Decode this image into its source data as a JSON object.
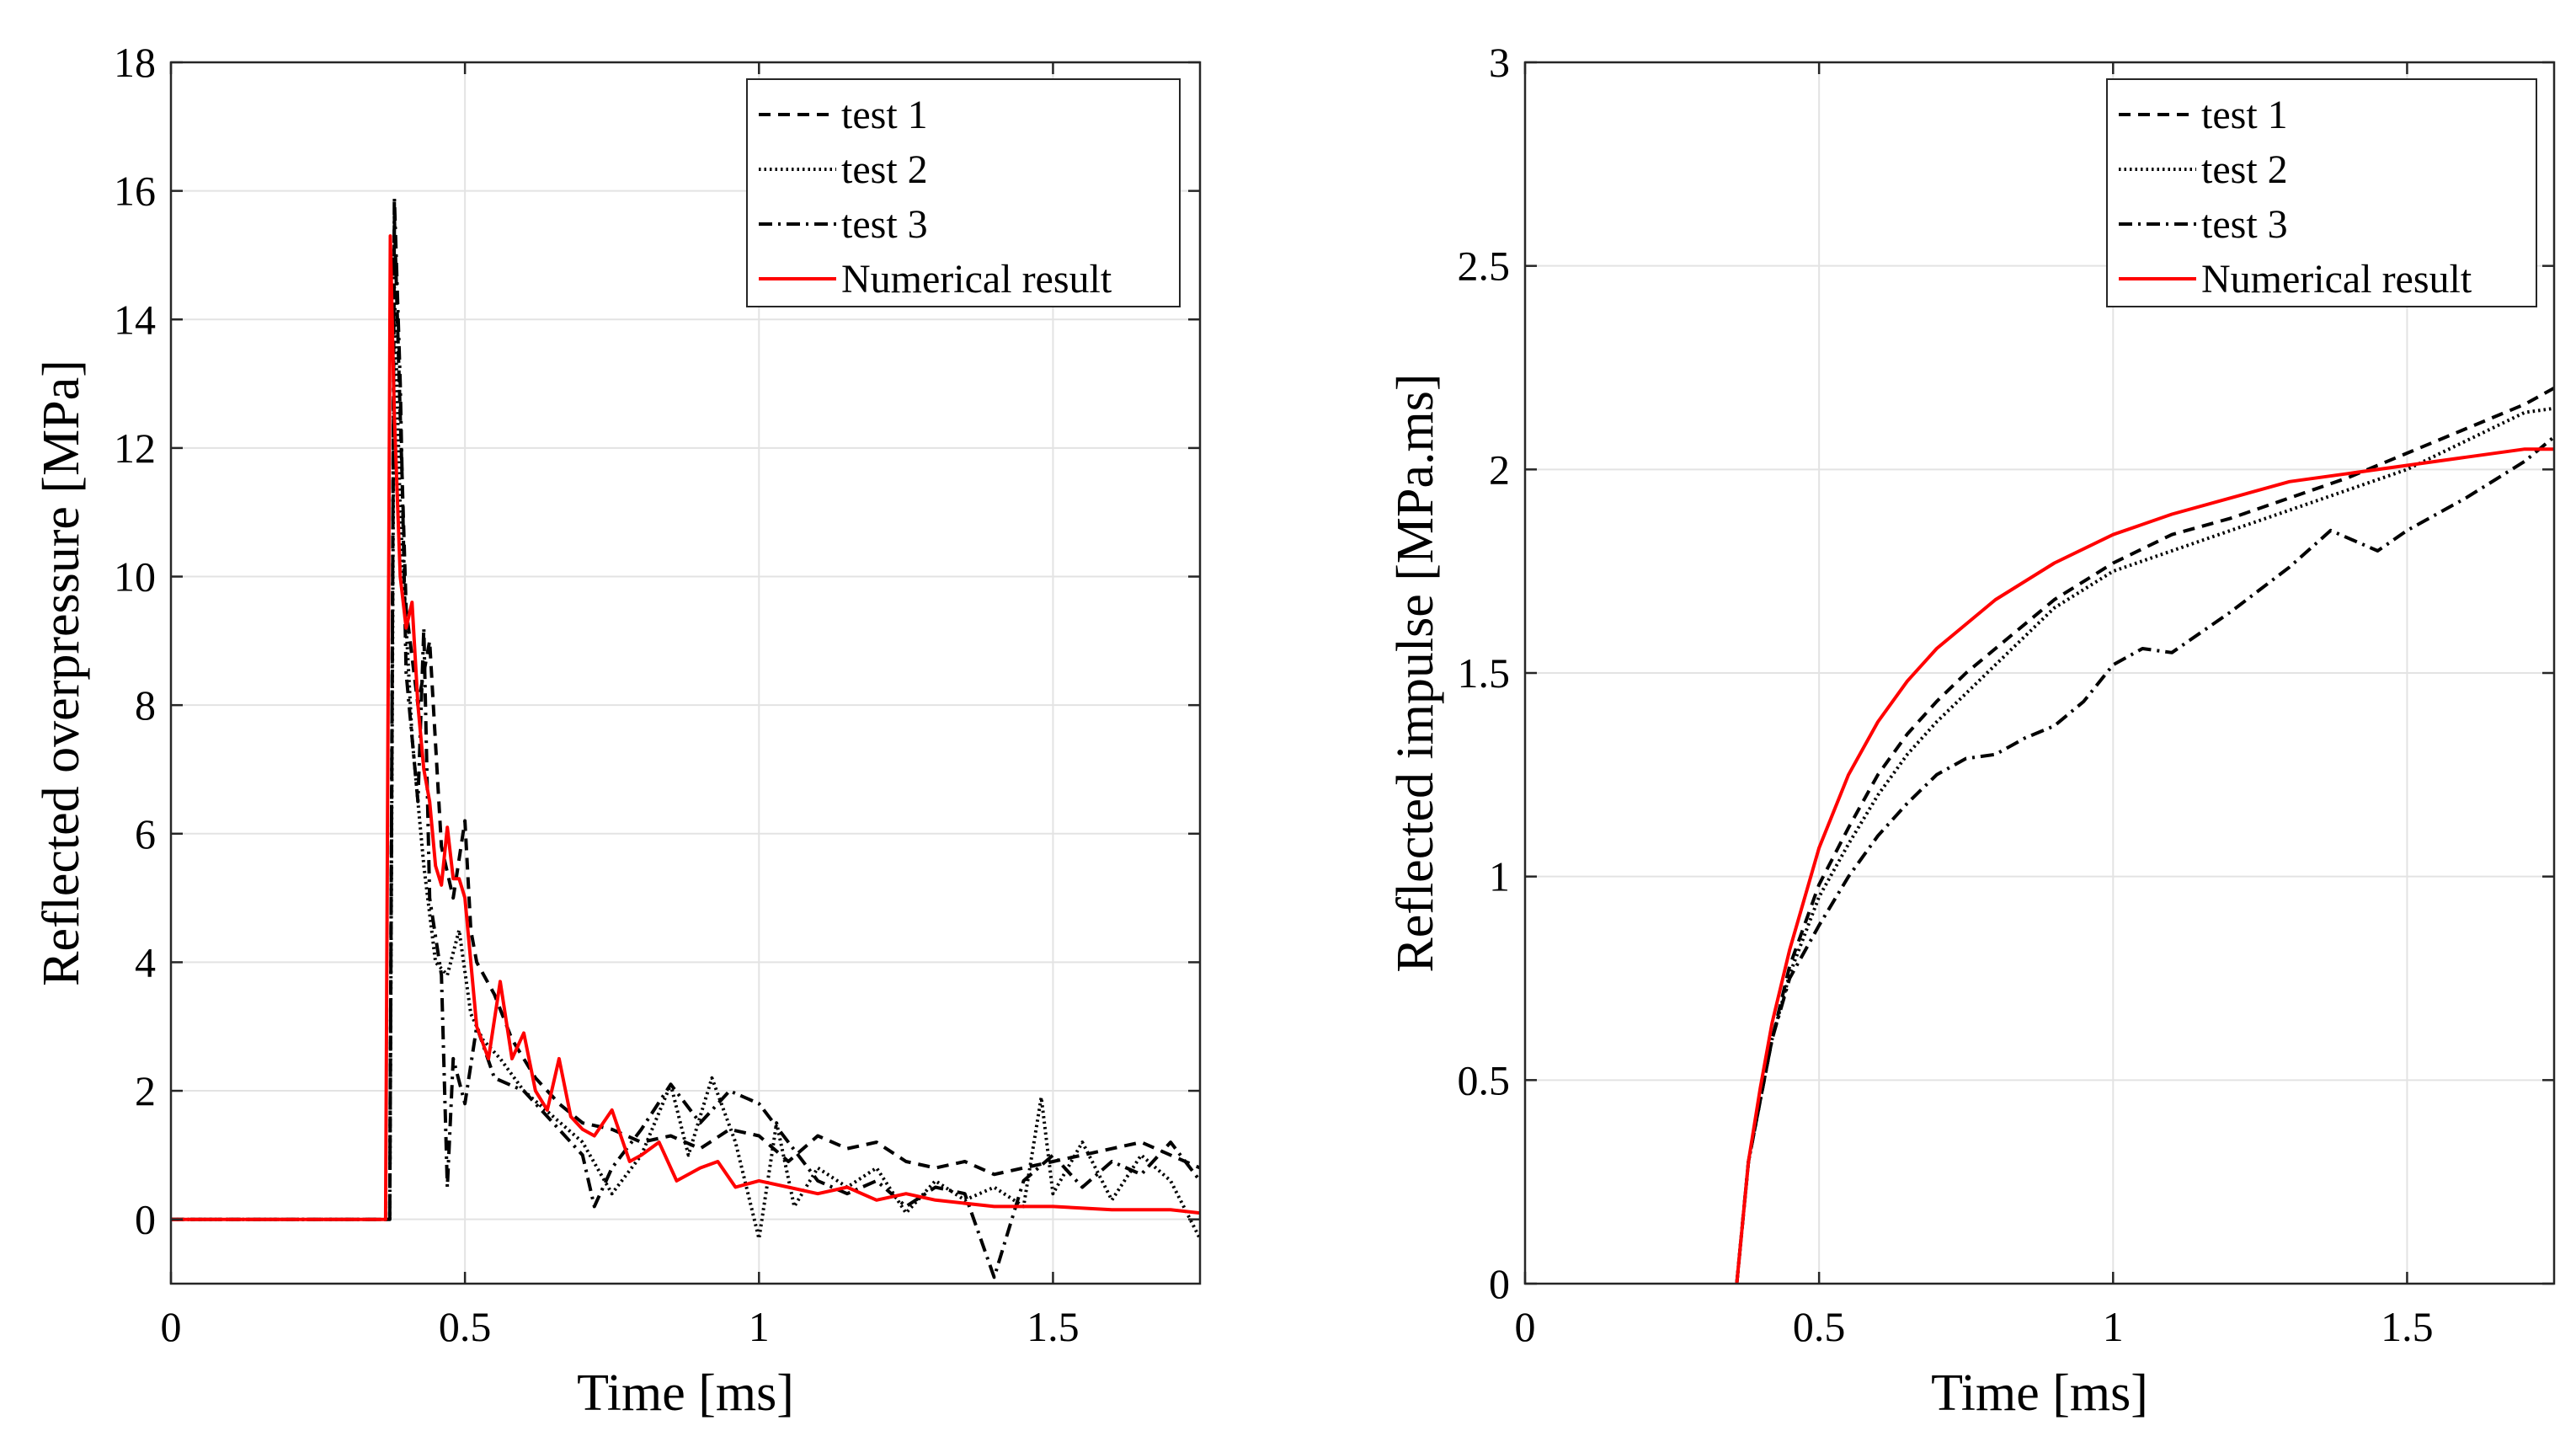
{
  "chart_data": [
    {
      "type": "line",
      "xlabel": "Time [ms]",
      "ylabel": "Reflected overpressure [MPa]",
      "xlim": [
        0,
        1.75
      ],
      "ylim": [
        -1,
        18
      ],
      "xticks": [
        0,
        0.5,
        1,
        1.5
      ],
      "xtick_labels": [
        "0",
        "0.5",
        "1",
        "1.5"
      ],
      "yticks": [
        0,
        2,
        4,
        6,
        8,
        10,
        12,
        14,
        16,
        18
      ],
      "ytick_labels": [
        "0",
        "2",
        "4",
        "6",
        "8",
        "10",
        "12",
        "14",
        "16",
        "18"
      ],
      "grid": true,
      "legend_position": "top-right",
      "series": [
        {
          "name": "test 1",
          "style": "dashed",
          "color": "#000000",
          "x": [
            0,
            0.36,
            0.372,
            0.38,
            0.39,
            0.4,
            0.42,
            0.44,
            0.46,
            0.48,
            0.5,
            0.51,
            0.52,
            0.55,
            0.58,
            0.62,
            0.66,
            0.7,
            0.75,
            0.8,
            0.85,
            0.9,
            0.95,
            1.0,
            1.05,
            1.1,
            1.15,
            1.2,
            1.25,
            1.3,
            1.35,
            1.4,
            1.45,
            1.5,
            1.55,
            1.6,
            1.65,
            1.7,
            1.75
          ],
          "y": [
            0,
            0,
            0,
            15.6,
            12.5,
            9.5,
            8.0,
            9.0,
            5.8,
            5.0,
            6.2,
            4.5,
            4.0,
            3.5,
            2.8,
            2.2,
            1.8,
            1.5,
            1.4,
            1.2,
            1.3,
            1.1,
            1.4,
            1.3,
            0.9,
            1.3,
            1.1,
            1.2,
            0.9,
            0.8,
            0.9,
            0.7,
            0.8,
            0.9,
            1.0,
            1.1,
            1.2,
            1.0,
            0.8
          ]
        },
        {
          "name": "test 2",
          "style": "dotted",
          "color": "#000000",
          "x": [
            0,
            0.36,
            0.372,
            0.38,
            0.39,
            0.41,
            0.43,
            0.45,
            0.47,
            0.49,
            0.51,
            0.53,
            0.56,
            0.6,
            0.65,
            0.7,
            0.75,
            0.8,
            0.85,
            0.88,
            0.92,
            0.96,
            1.0,
            1.03,
            1.06,
            1.1,
            1.15,
            1.2,
            1.25,
            1.3,
            1.35,
            1.4,
            1.45,
            1.48,
            1.5,
            1.55,
            1.6,
            1.65,
            1.7,
            1.75
          ],
          "y": [
            0,
            0,
            0,
            14.5,
            11.0,
            7.5,
            5.5,
            4.0,
            3.8,
            4.5,
            3.2,
            2.8,
            2.5,
            2.0,
            1.6,
            1.2,
            0.4,
            1.0,
            2.1,
            1.0,
            2.2,
            1.2,
            -0.3,
            1.5,
            0.2,
            0.8,
            0.5,
            0.8,
            0.1,
            0.6,
            0.3,
            0.5,
            0.2,
            1.9,
            0.4,
            1.2,
            0.3,
            1.0,
            0.6,
            -0.3
          ]
        },
        {
          "name": "test 3",
          "style": "dashdot",
          "color": "#000000",
          "x": [
            0,
            0.36,
            0.372,
            0.38,
            0.39,
            0.4,
            0.42,
            0.43,
            0.44,
            0.46,
            0.47,
            0.48,
            0.5,
            0.52,
            0.55,
            0.6,
            0.65,
            0.7,
            0.72,
            0.75,
            0.8,
            0.85,
            0.9,
            0.95,
            1.0,
            1.05,
            1.1,
            1.15,
            1.2,
            1.25,
            1.3,
            1.35,
            1.4,
            1.45,
            1.5,
            1.55,
            1.6,
            1.65,
            1.7,
            1.75
          ],
          "y": [
            0,
            0,
            0,
            15.9,
            13.0,
            8.5,
            6.5,
            9.2,
            5.0,
            3.8,
            0.5,
            2.5,
            1.8,
            3.0,
            2.2,
            2.0,
            1.5,
            1.0,
            0.2,
            0.8,
            1.4,
            2.1,
            1.5,
            2.0,
            1.8,
            1.2,
            0.6,
            0.4,
            0.6,
            0.2,
            0.5,
            0.4,
            -0.9,
            0.6,
            1.0,
            0.5,
            0.9,
            0.7,
            1.2,
            0.6
          ]
        },
        {
          "name": "Numerical result",
          "style": "solid",
          "color": "#ff0000",
          "x": [
            0,
            0.365,
            0.373,
            0.38,
            0.39,
            0.4,
            0.41,
            0.42,
            0.43,
            0.44,
            0.45,
            0.46,
            0.47,
            0.48,
            0.49,
            0.5,
            0.52,
            0.54,
            0.56,
            0.58,
            0.6,
            0.62,
            0.64,
            0.66,
            0.68,
            0.7,
            0.72,
            0.75,
            0.78,
            0.8,
            0.83,
            0.86,
            0.9,
            0.93,
            0.96,
            1.0,
            1.05,
            1.1,
            1.15,
            1.2,
            1.25,
            1.3,
            1.4,
            1.5,
            1.6,
            1.7,
            1.75
          ],
          "y": [
            0,
            0,
            15.3,
            12.5,
            10.0,
            9.2,
            9.6,
            8.0,
            7.0,
            6.5,
            5.5,
            5.2,
            6.1,
            5.3,
            5.3,
            5.0,
            3.0,
            2.5,
            3.7,
            2.5,
            2.9,
            2.0,
            1.7,
            2.5,
            1.6,
            1.4,
            1.3,
            1.7,
            0.9,
            1.0,
            1.2,
            0.6,
            0.8,
            0.9,
            0.5,
            0.6,
            0.5,
            0.4,
            0.5,
            0.3,
            0.4,
            0.3,
            0.2,
            0.2,
            0.15,
            0.15,
            0.1
          ]
        }
      ]
    },
    {
      "type": "line",
      "xlabel": "Time [ms]",
      "ylabel": "Reflected impulse [MPa.ms]",
      "xlim": [
        0,
        1.75
      ],
      "ylim": [
        0,
        3
      ],
      "xticks": [
        0,
        0.5,
        1,
        1.5
      ],
      "xtick_labels": [
        "0",
        "0.5",
        "1",
        "1.5"
      ],
      "yticks": [
        0,
        0.5,
        1,
        1.5,
        2,
        2.5,
        3
      ],
      "ytick_labels": [
        "0",
        "0.5",
        "1",
        "1.5",
        "2",
        "2.5",
        "3"
      ],
      "grid": true,
      "legend_position": "top-right",
      "series": [
        {
          "name": "test 1",
          "style": "dashed",
          "color": "#000000",
          "x": [
            0.36,
            0.38,
            0.4,
            0.42,
            0.45,
            0.5,
            0.55,
            0.6,
            0.65,
            0.7,
            0.75,
            0.8,
            0.9,
            1.0,
            1.1,
            1.2,
            1.3,
            1.4,
            1.5,
            1.6,
            1.7,
            1.75
          ],
          "y": [
            0,
            0.3,
            0.45,
            0.6,
            0.78,
            0.98,
            1.12,
            1.25,
            1.35,
            1.43,
            1.5,
            1.56,
            1.68,
            1.77,
            1.84,
            1.88,
            1.93,
            1.98,
            2.04,
            2.1,
            2.16,
            2.2
          ]
        },
        {
          "name": "test 2",
          "style": "dotted",
          "color": "#000000",
          "x": [
            0.36,
            0.38,
            0.4,
            0.42,
            0.45,
            0.5,
            0.55,
            0.6,
            0.65,
            0.7,
            0.75,
            0.8,
            0.9,
            1.0,
            1.1,
            1.2,
            1.3,
            1.4,
            1.5,
            1.6,
            1.7,
            1.75
          ],
          "y": [
            0,
            0.3,
            0.45,
            0.6,
            0.76,
            0.95,
            1.08,
            1.2,
            1.3,
            1.38,
            1.45,
            1.52,
            1.66,
            1.75,
            1.8,
            1.85,
            1.9,
            1.95,
            2.0,
            2.07,
            2.14,
            2.15
          ]
        },
        {
          "name": "test 3",
          "style": "dashdot",
          "color": "#000000",
          "x": [
            0.36,
            0.38,
            0.4,
            0.42,
            0.45,
            0.5,
            0.55,
            0.6,
            0.65,
            0.7,
            0.75,
            0.8,
            0.85,
            0.9,
            0.95,
            1.0,
            1.05,
            1.1,
            1.2,
            1.3,
            1.37,
            1.45,
            1.5,
            1.6,
            1.7,
            1.75
          ],
          "y": [
            0,
            0.3,
            0.45,
            0.6,
            0.75,
            0.88,
            1.0,
            1.1,
            1.18,
            1.25,
            1.29,
            1.3,
            1.34,
            1.37,
            1.43,
            1.52,
            1.56,
            1.55,
            1.65,
            1.76,
            1.85,
            1.8,
            1.85,
            1.93,
            2.02,
            2.08
          ]
        },
        {
          "name": "Numerical result",
          "style": "solid",
          "color": "#ff0000",
          "x": [
            0.36,
            0.38,
            0.4,
            0.42,
            0.45,
            0.5,
            0.55,
            0.6,
            0.65,
            0.7,
            0.75,
            0.8,
            0.9,
            1.0,
            1.1,
            1.2,
            1.3,
            1.4,
            1.5,
            1.6,
            1.7,
            1.75
          ],
          "y": [
            0,
            0.3,
            0.48,
            0.64,
            0.82,
            1.07,
            1.25,
            1.38,
            1.48,
            1.56,
            1.62,
            1.68,
            1.77,
            1.84,
            1.89,
            1.93,
            1.97,
            1.99,
            2.01,
            2.03,
            2.05,
            2.05
          ]
        }
      ]
    }
  ]
}
